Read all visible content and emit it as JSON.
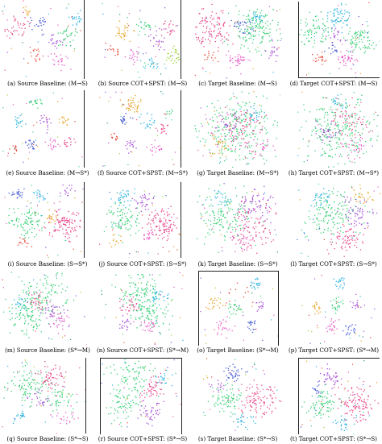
{
  "figure": {
    "panels": [
      {
        "caption": "(a) Source Baseline: (M→S)",
        "palette": [
          "#e8488a",
          "#3cd17a",
          "#4a5fd6",
          "#e6a020",
          "#a64fd8",
          "#2bb3e0",
          "#e84a3a",
          "#9ad23c",
          "#e85ac8",
          "#2a8f6a"
        ]
      },
      {
        "caption": "(b) Source COT+SPST: (M→S)",
        "palette": [
          "#e8488a",
          "#3cd17a",
          "#4a5fd6",
          "#e6a020",
          "#a64fd8",
          "#2bb3e0",
          "#e84a3a",
          "#9ad23c",
          "#e85ac8",
          "#2a8f6a"
        ]
      },
      {
        "caption": "(c) Target Baseline: (M→S)",
        "palette": [
          "#e8488a",
          "#3cd17a",
          "#4a5fd6",
          "#e6a020",
          "#a64fd8",
          "#2bb3e0",
          "#e84a3a",
          "#9ad23c",
          "#e85ac8",
          "#2a8f6a"
        ]
      },
      {
        "caption": "(d) Target COT+SPST: (M→S)",
        "palette": [
          "#e8488a",
          "#3cd17a",
          "#4a5fd6",
          "#e6a020",
          "#a64fd8",
          "#2bb3e0",
          "#e84a3a",
          "#9ad23c",
          "#e85ac8",
          "#2a8f6a"
        ]
      },
      {
        "caption": "(e) Source Baseline: (M→S*)",
        "palette": [
          "#e8488a",
          "#3cd17a",
          "#4a5fd6",
          "#e6a020",
          "#a64fd8",
          "#2bb3e0",
          "#e84a3a",
          "#9ad23c",
          "#e85ac8",
          "#2a8f6a"
        ]
      },
      {
        "caption": "(f) Source COT+SPST: (M→S*)",
        "palette": [
          "#e8488a",
          "#3cd17a",
          "#4a5fd6",
          "#e6a020",
          "#a64fd8",
          "#2bb3e0",
          "#e84a3a",
          "#9ad23c",
          "#e85ac8",
          "#2a8f6a"
        ]
      },
      {
        "caption": "(g) Target Baseline: (M→S*)",
        "palette": [
          "#e8488a",
          "#3cd17a",
          "#4a5fd6",
          "#e6a020",
          "#a64fd8",
          "#2bb3e0",
          "#e84a3a",
          "#9ad23c",
          "#e85ac8",
          "#2a8f6a"
        ]
      },
      {
        "caption": "(h) Target COT+SPST: (M→S*)",
        "palette": [
          "#e8488a",
          "#3cd17a",
          "#4a5fd6",
          "#e6a020",
          "#a64fd8",
          "#2bb3e0",
          "#e84a3a",
          "#9ad23c",
          "#e85ac8",
          "#2a8f6a"
        ]
      },
      {
        "caption": "(i) Source Baseline: (S→S*)",
        "palette": [
          "#e8488a",
          "#3cd17a",
          "#4a5fd6",
          "#e6a020",
          "#a64fd8",
          "#2bb3e0",
          "#e84a3a",
          "#9ad23c",
          "#e85ac8",
          "#2a8f6a"
        ]
      },
      {
        "caption": "(j) Source COT+SPST: (S→S*)",
        "palette": [
          "#e8488a",
          "#3cd17a",
          "#4a5fd6",
          "#e6a020",
          "#a64fd8",
          "#2bb3e0",
          "#e84a3a",
          "#9ad23c",
          "#e85ac8",
          "#2a8f6a"
        ]
      },
      {
        "caption": "(k) Target Baseline: (S→S*)",
        "palette": [
          "#e8488a",
          "#3cd17a",
          "#4a5fd6",
          "#e6a020",
          "#a64fd8",
          "#2bb3e0",
          "#e84a3a",
          "#9ad23c",
          "#e85ac8",
          "#2a8f6a"
        ]
      },
      {
        "caption": "(l) Target COT+SPST: (S→S*)",
        "palette": [
          "#e8488a",
          "#3cd17a",
          "#4a5fd6",
          "#e6a020",
          "#a64fd8",
          "#2bb3e0",
          "#e84a3a",
          "#9ad23c",
          "#e85ac8",
          "#2a8f6a"
        ]
      },
      {
        "caption": "(m) Source Baseline: (S*→M)",
        "palette": [
          "#e8488a",
          "#3cd17a",
          "#4a5fd6",
          "#e6a020",
          "#a64fd8",
          "#2bb3e0",
          "#e84a3a",
          "#9ad23c",
          "#e85ac8",
          "#2a8f6a"
        ]
      },
      {
        "caption": "(n) Source COT+SPST: (S*→M)",
        "palette": [
          "#e8488a",
          "#3cd17a",
          "#4a5fd6",
          "#e6a020",
          "#a64fd8",
          "#2bb3e0",
          "#e84a3a",
          "#9ad23c",
          "#e85ac8",
          "#2a8f6a"
        ]
      },
      {
        "caption": "(o) Target Baseline: (S*→M)",
        "palette": [
          "#e8488a",
          "#3cd17a",
          "#4a5fd6",
          "#e6a020",
          "#a64fd8",
          "#2bb3e0",
          "#e84a3a",
          "#9ad23c",
          "#e85ac8",
          "#2a8f6a"
        ]
      },
      {
        "caption": "(p) Target COT+SPST: (S*→M)",
        "palette": [
          "#e8488a",
          "#3cd17a",
          "#4a5fd6",
          "#e6a020",
          "#a64fd8",
          "#2bb3e0",
          "#e84a3a",
          "#9ad23c",
          "#e85ac8",
          "#2a8f6a"
        ]
      },
      {
        "caption": "(q) Source Baseline: (S*→S)",
        "palette": [
          "#e8488a",
          "#3cd17a",
          "#4a5fd6",
          "#e6a020",
          "#a64fd8",
          "#2bb3e0",
          "#e84a3a",
          "#9ad23c",
          "#e85ac8",
          "#2a8f6a"
        ]
      },
      {
        "caption": "(r) Source COT+SPST: (S*→S)",
        "palette": [
          "#e8488a",
          "#3cd17a",
          "#4a5fd6",
          "#e6a020",
          "#a64fd8",
          "#2bb3e0",
          "#e84a3a",
          "#9ad23c",
          "#e85ac8",
          "#2a8f6a"
        ]
      },
      {
        "caption": "(s) Target Baseline: (S*→S)",
        "palette": [
          "#e8488a",
          "#3cd17a",
          "#4a5fd6",
          "#e6a020",
          "#a64fd8",
          "#2bb3e0",
          "#e84a3a",
          "#9ad23c",
          "#e85ac8",
          "#2a8f6a"
        ]
      },
      {
        "caption": "(t) Target COT+SPST: (S*→S)",
        "palette": [
          "#e8488a",
          "#3cd17a",
          "#4a5fd6",
          "#e6a020",
          "#a64fd8",
          "#2bb3e0",
          "#e84a3a",
          "#9ad23c",
          "#e85ac8",
          "#2a8f6a"
        ]
      }
    ]
  }
}
